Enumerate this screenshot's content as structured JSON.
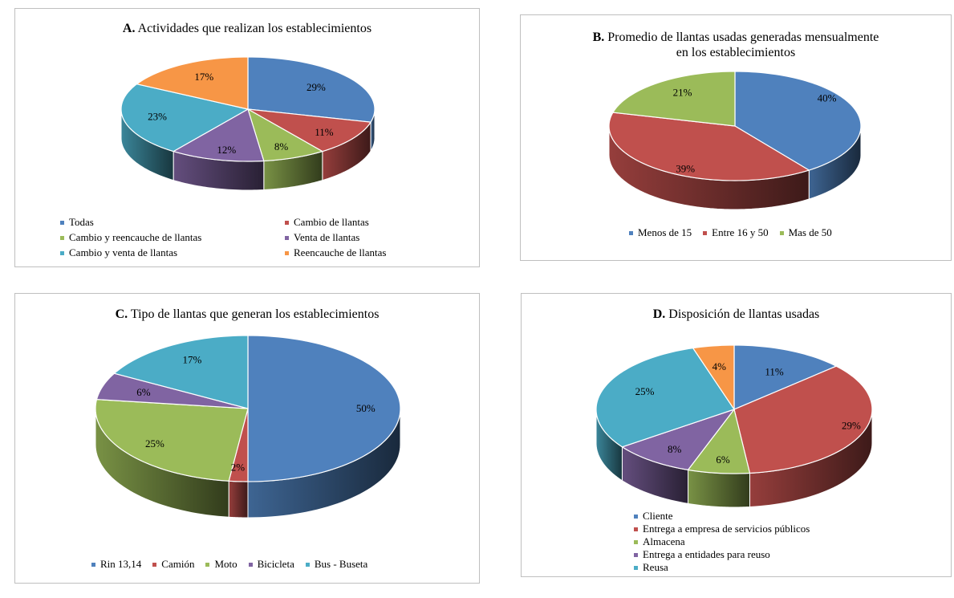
{
  "chart_data": [
    {
      "type": "pie",
      "letter": "A.",
      "title": "Actividades que realizan los establecimientos",
      "legend_position": "bottom",
      "slices": [
        {
          "label": "Todas",
          "value": 29,
          "text": "29%",
          "color": "#4f81bd"
        },
        {
          "label": "Cambio de llantas",
          "value": 11,
          "text": "11%",
          "color": "#c0504d"
        },
        {
          "label": "Cambio y reencauche de llantas",
          "value": 8,
          "text": "8%",
          "color": "#9bbb59"
        },
        {
          "label": "Venta de llantas",
          "value": 12,
          "text": "12%",
          "color": "#8064a2"
        },
        {
          "label": "Cambio y venta de llantas",
          "value": 23,
          "text": "23%",
          "color": "#4bacc6"
        },
        {
          "label": "Reencauche de llantas",
          "value": 17,
          "text": "17%",
          "color": "#f79646"
        }
      ]
    },
    {
      "type": "pie",
      "letter": "B.",
      "title": "Promedio de llantas usadas generadas mensualmente en los establecimientos",
      "title_line1": "Promedio de llantas usadas generadas mensualmente",
      "title_line2": "en los establecimientos",
      "legend_position": "bottom",
      "slices": [
        {
          "label": "Menos de 15",
          "value": 40,
          "text": "40%",
          "color": "#4f81bd"
        },
        {
          "label": "Entre 16 y 50",
          "value": 39,
          "text": "39%",
          "color": "#c0504d"
        },
        {
          "label": "Mas de 50",
          "value": 21,
          "text": "21%",
          "color": "#9bbb59"
        }
      ]
    },
    {
      "type": "pie",
      "letter": "C.",
      "title": "Tipo de llantas que generan los establecimientos",
      "legend_position": "bottom",
      "slices": [
        {
          "label": "Rin 13,14",
          "value": 50,
          "text": "50%",
          "color": "#4f81bd"
        },
        {
          "label": "Camión",
          "value": 2,
          "text": "2%",
          "color": "#c0504d"
        },
        {
          "label": "Moto",
          "value": 25,
          "text": "25%",
          "color": "#9bbb59"
        },
        {
          "label": "Bicicleta",
          "value": 6,
          "text": "6%",
          "color": "#8064a2"
        },
        {
          "label": "Bus - Buseta",
          "value": 17,
          "text": "17%",
          "color": "#4bacc6"
        }
      ]
    },
    {
      "type": "pie",
      "letter": "D.",
      "title": "Disposición de llantas usadas",
      "legend_position": "bottom",
      "slices": [
        {
          "label": "Cliente",
          "value": 11,
          "text": "11%",
          "color": "#4f81bd"
        },
        {
          "label": "Entrega a empresa de servicios públicos",
          "value": 29,
          "text": "29%",
          "color": "#c0504d"
        },
        {
          "label": "Almacena",
          "value": 6,
          "text": "6%",
          "color": "#9bbb59"
        },
        {
          "label": "Entrega a entidades para reuso",
          "value": 8,
          "text": "8%",
          "color": "#8064a2"
        },
        {
          "label": "Reusa",
          "value": 25,
          "text": "25%",
          "color": "#4bacc6"
        },
        {
          "label": "",
          "value": 4,
          "text": "4%",
          "color": "#f79646"
        }
      ]
    }
  ]
}
